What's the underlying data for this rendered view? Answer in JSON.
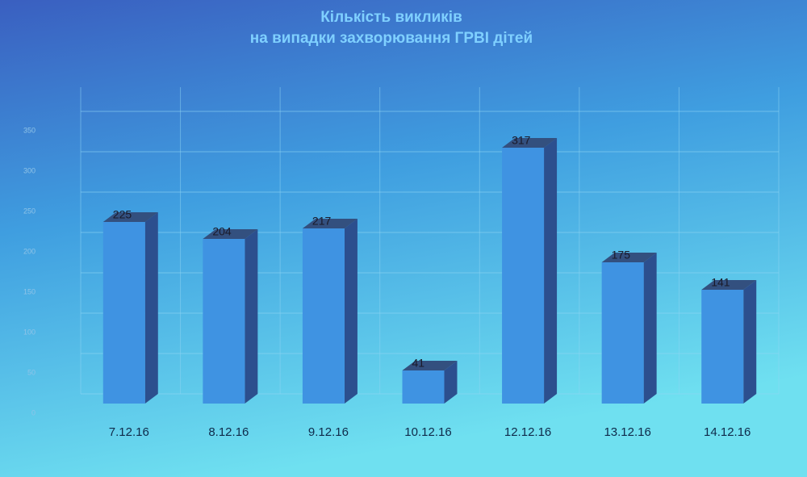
{
  "chart_data": {
    "type": "bar3d",
    "title": [
      "Кількість викликів",
      "на випадки захворювання ГРВІ дітей"
    ],
    "categories": [
      "7.12.16",
      "8.12.16",
      "9.12.16",
      "10.12.16",
      "12.12.16",
      "13.12.16",
      "14.12.16"
    ],
    "values": [
      225,
      204,
      217,
      41,
      317,
      175,
      141
    ],
    "color": "#3f93e2",
    "side_color": "#2c4f8e",
    "top_color": "#33507f",
    "ylim": [
      0,
      350
    ],
    "yticks": [
      0,
      50,
      100,
      150,
      200,
      250,
      300,
      350
    ],
    "grid": true
  }
}
